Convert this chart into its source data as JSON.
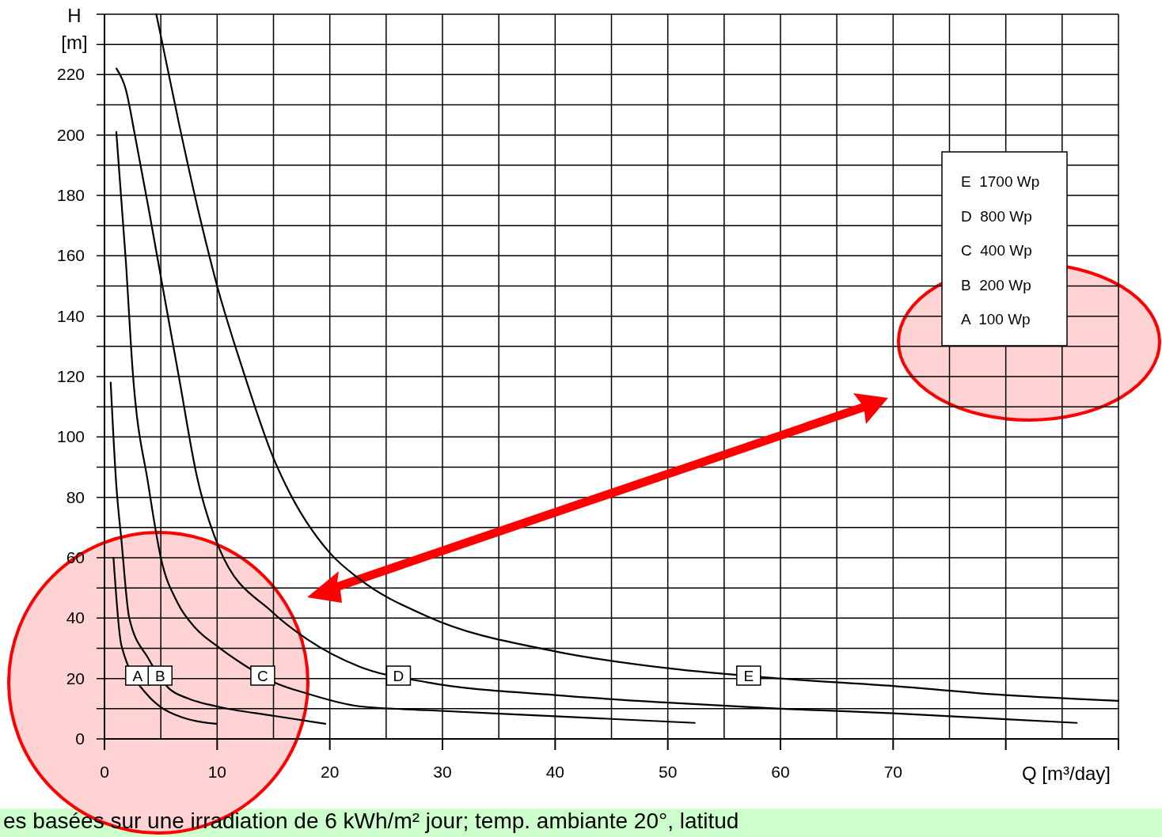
{
  "chart_data": {
    "type": "line",
    "xlabel": "Q [m³/day]",
    "ylabel": "H [m]",
    "xlim": [
      0,
      90
    ],
    "ylim": [
      0,
      240
    ],
    "xticks": [
      0,
      {
        "value": 5,
        "label": null
      },
      10,
      {
        "value": 15,
        "label": null
      },
      20,
      {
        "value": 25,
        "label": null
      },
      30,
      {
        "value": 35,
        "label": null
      },
      40,
      {
        "value": 45,
        "label": null
      },
      50,
      {
        "value": 55,
        "label": null
      },
      60,
      {
        "value": 65,
        "label": null
      },
      70,
      {
        "value": 75,
        "label": null
      },
      {
        "value": 80,
        "label": null
      },
      {
        "value": 85,
        "label": null
      },
      {
        "value": 90,
        "label": null
      }
    ],
    "yticks": [
      0,
      {
        "value": 10,
        "label": null
      },
      20,
      {
        "value": 30,
        "label": null
      },
      40,
      {
        "value": 50,
        "label": null
      },
      60,
      {
        "value": 70,
        "label": null
      },
      80,
      {
        "value": 90,
        "label": null
      },
      100,
      {
        "value": 110,
        "label": null
      },
      120,
      {
        "value": 130,
        "label": null
      },
      140,
      {
        "value": 150,
        "label": null
      },
      160,
      {
        "value": 170,
        "label": null
      },
      180,
      {
        "value": 190,
        "label": null
      },
      200,
      {
        "value": 210,
        "label": null
      },
      220,
      {
        "value": 230,
        "label": null
      },
      {
        "value": 240,
        "label": null
      }
    ],
    "grid": true,
    "marker": "none",
    "line_style": "solid",
    "series": [
      {
        "name": "A",
        "color": "#000000",
        "x": [
          0.8,
          1.5,
          3.9,
          4.9,
          7,
          9.9
        ],
        "values": [
          60,
          31,
          14.2,
          10.8,
          7,
          5
        ]
      },
      {
        "name": "B",
        "color": "#000000",
        "x": [
          0.55,
          1.05,
          1.5,
          2.2,
          3.9,
          5.7,
          7.4,
          9.9,
          15.1,
          19.6
        ],
        "values": [
          118,
          84,
          66,
          40,
          26.6,
          16.8,
          13.4,
          10.8,
          7.6,
          5
        ]
      },
      {
        "name": "C",
        "color": "#000000",
        "x": [
          1.05,
          1.9,
          2.5,
          3.9,
          5,
          6.5,
          8,
          9.9,
          12.3,
          15.1,
          18,
          22.6,
          28.7,
          40,
          52.4
        ],
        "values": [
          201,
          158,
          122,
          84,
          60,
          45,
          37,
          31,
          24.7,
          18.7,
          15,
          10.8,
          9.5,
          7.5,
          5.3
        ]
      },
      {
        "name": "D",
        "color": "#000000",
        "x": [
          1.06,
          1.9,
          2.7,
          3.9,
          5.1,
          6.6,
          8.2,
          10.2,
          14.9,
          18,
          22.6,
          28.7,
          40,
          50,
          60,
          70,
          80,
          86.3
        ],
        "values": [
          222,
          215,
          200,
          176,
          151,
          120,
          87,
          63,
          42,
          33,
          24,
          18.7,
          14.5,
          12,
          10,
          8.5,
          6.5,
          5.3
        ]
      },
      {
        "name": "E",
        "color": "#000000",
        "x": [
          4.6,
          6.6,
          8.2,
          10,
          12.3,
          15,
          16.1,
          20,
          22.6,
          28.7,
          40,
          50,
          60,
          70,
          80,
          90
        ],
        "values": [
          240,
          204,
          177,
          150,
          122,
          93,
          84,
          61.6,
          53,
          40.5,
          29,
          23.4,
          20,
          17.5,
          14.5,
          12.6
        ]
      }
    ],
    "annotations": [
      "E  1700 Wp",
      "D  800 Wp",
      "C  400 Wp",
      "B  200 Wp",
      "A  100 Wp",
      "es basées sur une irradiation de 6 kWh/m² jour; temp. ambiante 20°, latitud"
    ]
  }
}
